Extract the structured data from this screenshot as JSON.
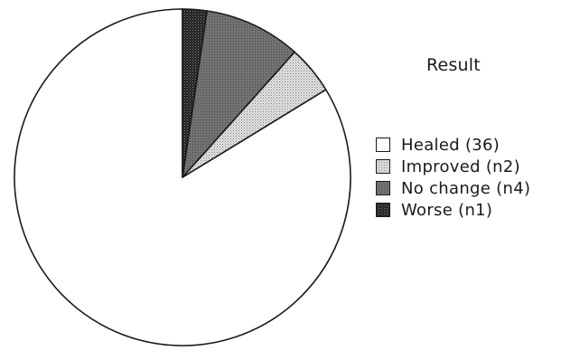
{
  "chart_data": {
    "type": "pie",
    "title": "",
    "legend_title": "Result",
    "legend_position": "right",
    "start_angle_deg": 0,
    "direction": "counterclockwise",
    "slices": [
      {
        "label": "Healed (36)",
        "value": 36,
        "pattern": "white"
      },
      {
        "label": "Improved (n2)",
        "value": 2,
        "pattern": "light-dots"
      },
      {
        "label": "No change (n4)",
        "value": 4,
        "pattern": "medium-gray"
      },
      {
        "label": "Worse (n1)",
        "value": 1,
        "pattern": "dark-dots"
      }
    ],
    "colors": {
      "outline": "#1a1a1a",
      "white": "#ffffff",
      "light": "#cfcfcf",
      "medium": "#6a6a6a",
      "dark": "#1e1e1e"
    }
  }
}
